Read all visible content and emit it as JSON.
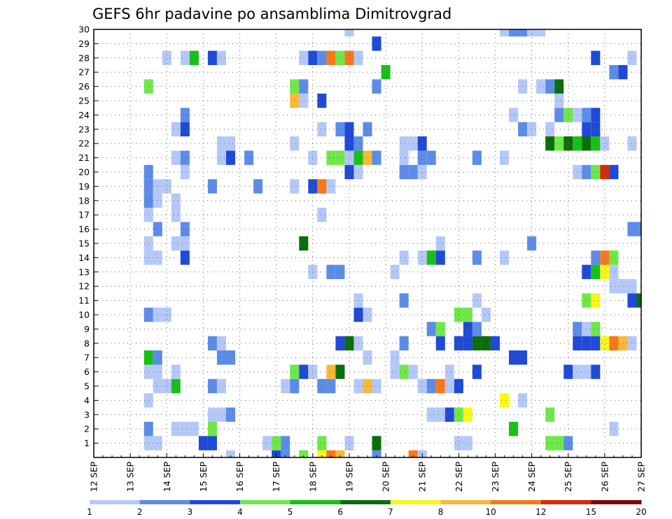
{
  "chart_data": {
    "type": "heatmap",
    "title": "GEFS 6hr padavine po ansamblima Dimitrovgrad",
    "xlabel": "",
    "ylabel": "",
    "x_tick_labels": [
      "12 SEP",
      "13 SEP",
      "14 SEP",
      "15 SEP",
      "16 SEP",
      "17 SEP",
      "18 SEP",
      "19 SEP",
      "20 SEP",
      "21 SEP",
      "22 SEP",
      "23 SEP",
      "24 SEP",
      "25 SEP",
      "26 SEP",
      "27 SEP"
    ],
    "y_tick_labels": [
      "1",
      "2",
      "3",
      "4",
      "5",
      "6",
      "7",
      "8",
      "9",
      "10",
      "11",
      "12",
      "13",
      "14",
      "15",
      "16",
      "17",
      "18",
      "19",
      "20",
      "21",
      "22",
      "23",
      "24",
      "25",
      "26",
      "27",
      "28",
      "29",
      "30"
    ],
    "xlim": [
      0,
      60
    ],
    "ylim": [
      0,
      30
    ],
    "grid": true,
    "colorbar": {
      "tick_labels": [
        "1",
        "2",
        "3",
        "4",
        "5",
        "6",
        "7",
        "8",
        "10",
        "12",
        "15",
        "20"
      ],
      "colors": [
        "#b4c8f8",
        "#5c8ce8",
        "#1f4ad8",
        "#6ee848",
        "#18c018",
        "#0a6e0a",
        "#f8f818",
        "#f8b838",
        "#f87818",
        "#d82808",
        "#7a0a0a"
      ]
    },
    "cells": [
      [
        0,
        15,
        0
      ],
      [
        0,
        20,
        2
      ],
      [
        0,
        21,
        1
      ],
      [
        0,
        23,
        3
      ],
      [
        0,
        25,
        6
      ],
      [
        0,
        26,
        8
      ],
      [
        0,
        27,
        7
      ],
      [
        0,
        31,
        1
      ],
      [
        0,
        35,
        8
      ],
      [
        0,
        36,
        0
      ],
      [
        1,
        6,
        0
      ],
      [
        1,
        7,
        0
      ],
      [
        1,
        12,
        2
      ],
      [
        1,
        13,
        2
      ],
      [
        1,
        19,
        0
      ],
      [
        1,
        20,
        3
      ],
      [
        1,
        21,
        1
      ],
      [
        1,
        25,
        3
      ],
      [
        1,
        28,
        0
      ],
      [
        1,
        31,
        5
      ],
      [
        1,
        40,
        0
      ],
      [
        1,
        41,
        0
      ],
      [
        1,
        50,
        3
      ],
      [
        1,
        51,
        3
      ],
      [
        1,
        52,
        1
      ],
      [
        2,
        6,
        1
      ],
      [
        2,
        9,
        0
      ],
      [
        2,
        10,
        0
      ],
      [
        2,
        11,
        0
      ],
      [
        2,
        13,
        3
      ],
      [
        2,
        46,
        4
      ],
      [
        2,
        57,
        0
      ],
      [
        3,
        13,
        0
      ],
      [
        3,
        14,
        0
      ],
      [
        3,
        15,
        1
      ],
      [
        3,
        37,
        0
      ],
      [
        3,
        38,
        0
      ],
      [
        3,
        39,
        2
      ],
      [
        3,
        40,
        3
      ],
      [
        3,
        41,
        6
      ],
      [
        3,
        50,
        3
      ],
      [
        4,
        6,
        0
      ],
      [
        4,
        45,
        6
      ],
      [
        4,
        47,
        0
      ],
      [
        5,
        7,
        0
      ],
      [
        5,
        8,
        0
      ],
      [
        5,
        9,
        4
      ],
      [
        5,
        13,
        1
      ],
      [
        5,
        14,
        0
      ],
      [
        5,
        21,
        0
      ],
      [
        5,
        22,
        1
      ],
      [
        5,
        25,
        1
      ],
      [
        5,
        26,
        1
      ],
      [
        5,
        29,
        0
      ],
      [
        5,
        30,
        7
      ],
      [
        5,
        31,
        0
      ],
      [
        5,
        36,
        0
      ],
      [
        5,
        37,
        1
      ],
      [
        5,
        38,
        8
      ],
      [
        5,
        39,
        0
      ],
      [
        5,
        40,
        2
      ],
      [
        6,
        6,
        0
      ],
      [
        6,
        7,
        0
      ],
      [
        6,
        9,
        0
      ],
      [
        6,
        22,
        3
      ],
      [
        6,
        23,
        2
      ],
      [
        6,
        24,
        0
      ],
      [
        6,
        26,
        7
      ],
      [
        6,
        27,
        5
      ],
      [
        6,
        33,
        0
      ],
      [
        6,
        34,
        3
      ],
      [
        6,
        35,
        0
      ],
      [
        6,
        39,
        0
      ],
      [
        6,
        42,
        2
      ],
      [
        6,
        52,
        2
      ],
      [
        6,
        53,
        0
      ],
      [
        6,
        54,
        0
      ],
      [
        6,
        55,
        2
      ],
      [
        7,
        6,
        4
      ],
      [
        7,
        7,
        1
      ],
      [
        7,
        14,
        1
      ],
      [
        7,
        15,
        1
      ],
      [
        7,
        30,
        0
      ],
      [
        7,
        33,
        0
      ],
      [
        7,
        46,
        2
      ],
      [
        7,
        47,
        2
      ],
      [
        8,
        13,
        1
      ],
      [
        8,
        14,
        0
      ],
      [
        8,
        27,
        2
      ],
      [
        8,
        28,
        5
      ],
      [
        8,
        29,
        0
      ],
      [
        8,
        34,
        1
      ],
      [
        8,
        38,
        2
      ],
      [
        8,
        40,
        2
      ],
      [
        8,
        41,
        2
      ],
      [
        8,
        42,
        5
      ],
      [
        8,
        43,
        5
      ],
      [
        8,
        44,
        2
      ],
      [
        8,
        53,
        2
      ],
      [
        8,
        54,
        2
      ],
      [
        8,
        55,
        2
      ],
      [
        8,
        56,
        6
      ],
      [
        8,
        57,
        8
      ],
      [
        8,
        58,
        7
      ],
      [
        8,
        59,
        0
      ],
      [
        9,
        37,
        1
      ],
      [
        9,
        38,
        3
      ],
      [
        9,
        41,
        2
      ],
      [
        9,
        42,
        1
      ],
      [
        9,
        53,
        1
      ],
      [
        9,
        54,
        0
      ],
      [
        9,
        55,
        3
      ],
      [
        10,
        6,
        1
      ],
      [
        10,
        7,
        0
      ],
      [
        10,
        8,
        0
      ],
      [
        10,
        29,
        2
      ],
      [
        10,
        30,
        0
      ],
      [
        10,
        40,
        3
      ],
      [
        10,
        41,
        3
      ],
      [
        10,
        43,
        0
      ],
      [
        11,
        29,
        0
      ],
      [
        11,
        34,
        1
      ],
      [
        11,
        42,
        0
      ],
      [
        11,
        54,
        3
      ],
      [
        11,
        55,
        6
      ],
      [
        11,
        59,
        2
      ],
      [
        11,
        60,
        5
      ],
      [
        12,
        57,
        0
      ],
      [
        12,
        58,
        0
      ],
      [
        12,
        59,
        0
      ],
      [
        13,
        24,
        0
      ],
      [
        13,
        26,
        1
      ],
      [
        13,
        27,
        1
      ],
      [
        13,
        33,
        0
      ],
      [
        13,
        54,
        2
      ],
      [
        13,
        55,
        4
      ],
      [
        13,
        56,
        6
      ],
      [
        13,
        57,
        0
      ],
      [
        14,
        6,
        0
      ],
      [
        14,
        7,
        0
      ],
      [
        14,
        10,
        2
      ],
      [
        14,
        34,
        0
      ],
      [
        14,
        36,
        0
      ],
      [
        14,
        37,
        4
      ],
      [
        14,
        38,
        2
      ],
      [
        14,
        42,
        1
      ],
      [
        14,
        45,
        0
      ],
      [
        14,
        55,
        1
      ],
      [
        14,
        56,
        8
      ],
      [
        14,
        57,
        3
      ],
      [
        15,
        6,
        0
      ],
      [
        15,
        9,
        0
      ],
      [
        15,
        10,
        0
      ],
      [
        15,
        23,
        5
      ],
      [
        15,
        38,
        0
      ],
      [
        15,
        48,
        1
      ],
      [
        16,
        7,
        1
      ],
      [
        16,
        10,
        1
      ],
      [
        16,
        59,
        1
      ],
      [
        16,
        60,
        1
      ],
      [
        17,
        6,
        0
      ],
      [
        17,
        9,
        0
      ],
      [
        17,
        25,
        0
      ],
      [
        18,
        6,
        1
      ],
      [
        18,
        7,
        0
      ],
      [
        18,
        9,
        0
      ],
      [
        19,
        6,
        1
      ],
      [
        19,
        7,
        0
      ],
      [
        19,
        8,
        0
      ],
      [
        19,
        13,
        1
      ],
      [
        19,
        18,
        1
      ],
      [
        19,
        22,
        0
      ],
      [
        19,
        24,
        2
      ],
      [
        19,
        25,
        8
      ],
      [
        19,
        26,
        0
      ],
      [
        20,
        6,
        1
      ],
      [
        20,
        10,
        0
      ],
      [
        20,
        28,
        2
      ],
      [
        20,
        29,
        0
      ],
      [
        20,
        34,
        1
      ],
      [
        20,
        35,
        1
      ],
      [
        20,
        36,
        0
      ],
      [
        20,
        53,
        0
      ],
      [
        20,
        54,
        1
      ],
      [
        20,
        55,
        3
      ],
      [
        20,
        56,
        9
      ],
      [
        20,
        57,
        2
      ],
      [
        21,
        9,
        0
      ],
      [
        21,
        10,
        1
      ],
      [
        21,
        14,
        0
      ],
      [
        21,
        15,
        2
      ],
      [
        21,
        17,
        1
      ],
      [
        21,
        24,
        0
      ],
      [
        21,
        26,
        3
      ],
      [
        21,
        27,
        3
      ],
      [
        21,
        28,
        0
      ],
      [
        21,
        29,
        4
      ],
      [
        21,
        30,
        7
      ],
      [
        21,
        31,
        1
      ],
      [
        21,
        34,
        0
      ],
      [
        21,
        36,
        1
      ],
      [
        21,
        37,
        1
      ],
      [
        21,
        42,
        1
      ],
      [
        21,
        45,
        0
      ],
      [
        22,
        14,
        0
      ],
      [
        22,
        15,
        0
      ],
      [
        22,
        22,
        0
      ],
      [
        22,
        28,
        2
      ],
      [
        22,
        29,
        1
      ],
      [
        22,
        34,
        0
      ],
      [
        22,
        35,
        0
      ],
      [
        22,
        36,
        2
      ],
      [
        22,
        50,
        5
      ],
      [
        22,
        51,
        3
      ],
      [
        22,
        52,
        5
      ],
      [
        22,
        53,
        4
      ],
      [
        22,
        54,
        5
      ],
      [
        22,
        55,
        4
      ],
      [
        22,
        56,
        0
      ],
      [
        22,
        59,
        0
      ],
      [
        23,
        9,
        0
      ],
      [
        23,
        10,
        2
      ],
      [
        23,
        25,
        0
      ],
      [
        23,
        27,
        1
      ],
      [
        23,
        28,
        2
      ],
      [
        23,
        30,
        1
      ],
      [
        23,
        47,
        1
      ],
      [
        23,
        48,
        0
      ],
      [
        23,
        50,
        0
      ],
      [
        23,
        54,
        2
      ],
      [
        23,
        55,
        2
      ],
      [
        24,
        10,
        1
      ],
      [
        24,
        46,
        0
      ],
      [
        24,
        51,
        1
      ],
      [
        24,
        52,
        3
      ],
      [
        24,
        53,
        0
      ],
      [
        24,
        54,
        1
      ],
      [
        24,
        55,
        2
      ],
      [
        25,
        22,
        7
      ],
      [
        25,
        23,
        0
      ],
      [
        25,
        25,
        2
      ],
      [
        25,
        51,
        0
      ],
      [
        26,
        6,
        3
      ],
      [
        26,
        22,
        3
      ],
      [
        26,
        23,
        1
      ],
      [
        26,
        31,
        1
      ],
      [
        26,
        47,
        0
      ],
      [
        26,
        49,
        0
      ],
      [
        26,
        50,
        1
      ],
      [
        26,
        51,
        5
      ],
      [
        27,
        32,
        4
      ],
      [
        27,
        57,
        1
      ],
      [
        27,
        58,
        2
      ],
      [
        28,
        8,
        0
      ],
      [
        28,
        10,
        0
      ],
      [
        28,
        11,
        4
      ],
      [
        28,
        13,
        2
      ],
      [
        28,
        14,
        0
      ],
      [
        28,
        23,
        0
      ],
      [
        28,
        24,
        2
      ],
      [
        28,
        25,
        1
      ],
      [
        28,
        26,
        8
      ],
      [
        28,
        27,
        3
      ],
      [
        28,
        28,
        8
      ],
      [
        28,
        29,
        0
      ],
      [
        28,
        55,
        2
      ],
      [
        28,
        59,
        0
      ],
      [
        29,
        31,
        2
      ],
      [
        30,
        28,
        0
      ],
      [
        30,
        45,
        0
      ],
      [
        30,
        46,
        1
      ],
      [
        30,
        47,
        1
      ],
      [
        30,
        48,
        0
      ],
      [
        30,
        49,
        0
      ]
    ]
  }
}
